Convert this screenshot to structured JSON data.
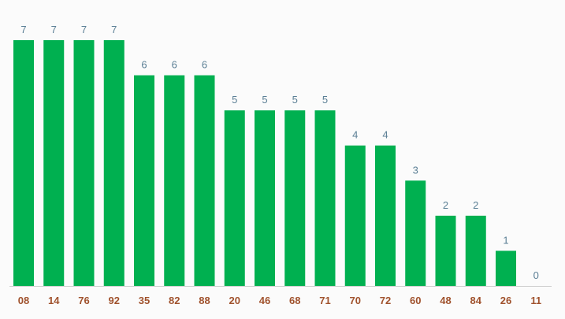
{
  "chart_data": {
    "type": "bar",
    "categories": [
      "08",
      "14",
      "76",
      "92",
      "35",
      "82",
      "88",
      "20",
      "46",
      "68",
      "71",
      "70",
      "72",
      "60",
      "48",
      "84",
      "26",
      "11"
    ],
    "values": [
      7,
      7,
      7,
      7,
      6,
      6,
      6,
      5,
      5,
      5,
      5,
      4,
      4,
      3,
      2,
      2,
      1,
      0
    ],
    "title": "",
    "xlabel": "",
    "ylabel": "",
    "ylim": [
      0,
      7
    ],
    "grid": false,
    "data_labels": true,
    "legend": "none"
  },
  "colors": {
    "bar": "#00b050",
    "value_label": "#5b7f95",
    "tick_label": "#a0522d",
    "axis_line": "#cccccc",
    "background": "#fbfbfb"
  }
}
